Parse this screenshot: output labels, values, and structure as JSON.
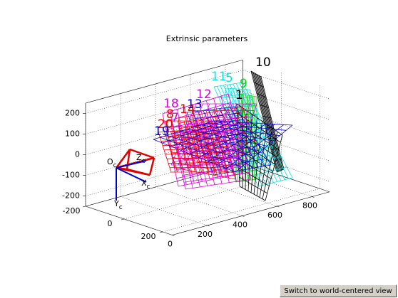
{
  "chart_data": {
    "type": "3d-planes",
    "title": "Extrinsic parameters",
    "xlim": [
      0,
      900
    ],
    "ylim": [
      -200,
      250
    ],
    "zlim": [
      -250,
      250
    ],
    "xticks": [
      0,
      200,
      400,
      600,
      800
    ],
    "yticks": [
      -200,
      0,
      200
    ],
    "zticks": [
      -200,
      -100,
      0,
      100,
      200
    ],
    "grid": true,
    "planes": [
      {
        "label": "10",
        "color": "#000000"
      },
      {
        "label": "11",
        "color": "#00e5e5"
      },
      {
        "label": "5",
        "color": "#00e5e5"
      },
      {
        "label": "9",
        "color": "#00dd00"
      },
      {
        "label": "1",
        "color": "#000000"
      },
      {
        "label": "18",
        "color": "#e000e0"
      },
      {
        "label": "14",
        "color": "#ee0000"
      },
      {
        "label": "13",
        "color": "#0000cc"
      },
      {
        "label": "12",
        "color": "#e000e0"
      },
      {
        "label": "8",
        "color": "#ee0000"
      },
      {
        "label": "20",
        "color": "#ee0000"
      },
      {
        "label": "7",
        "color": "#e000e0"
      },
      {
        "label": "19",
        "color": "#0000cc"
      }
    ],
    "camera": {
      "labels": [
        {
          "main": "O",
          "sub": "c"
        },
        {
          "main": "Z",
          "sub": "c"
        },
        {
          "main": "X",
          "sub": "c"
        },
        {
          "main": "Y",
          "sub": "c"
        }
      ]
    }
  },
  "button": {
    "label": "Switch to world-centered view"
  }
}
